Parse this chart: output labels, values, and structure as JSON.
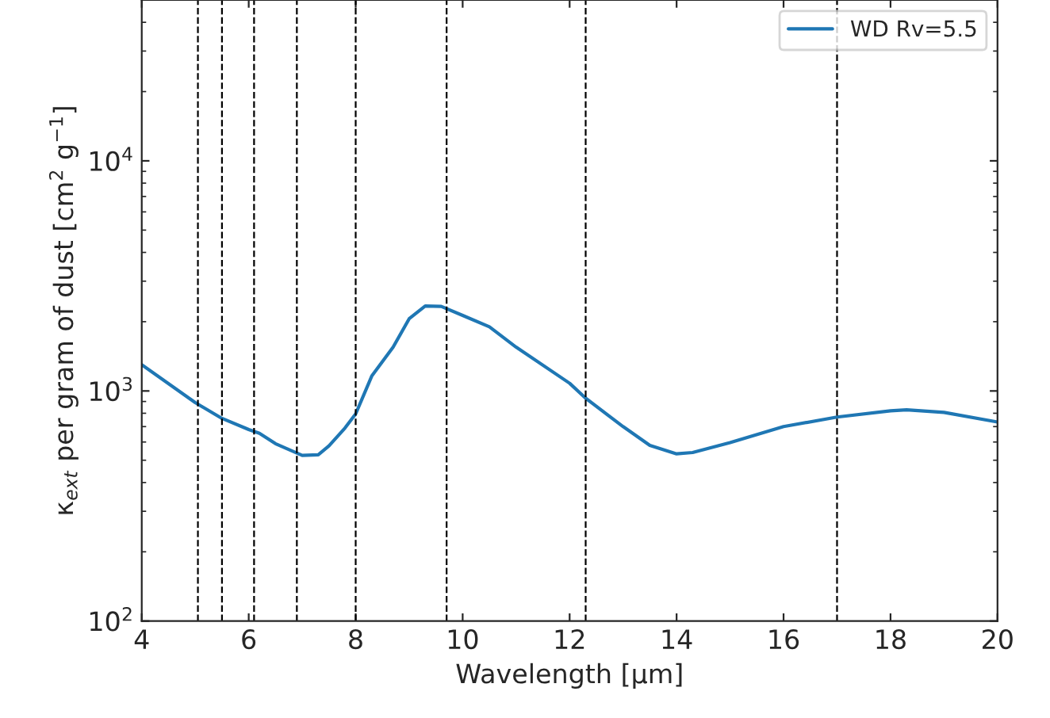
{
  "chart_data": {
    "type": "line",
    "xlabel": "Wavelength [μm]",
    "ylabel": "κ$_{ext}$ per gram of dust [cm$^{2}$ g$^{−1}$]",
    "x": [
      4,
      5,
      5.5,
      6,
      6.2,
      6.5,
      7,
      7.3,
      7.5,
      7.8,
      8,
      8.3,
      8.7,
      9,
      9.3,
      9.6,
      10,
      10.5,
      11,
      12,
      12.3,
      13,
      13.5,
      14,
      14.3,
      15,
      16,
      17,
      18,
      18.3,
      19,
      20
    ],
    "series": [
      {
        "name": "WD Rv=5.5",
        "color": "#1f77b4",
        "values": [
          1300,
          890,
          760,
          680,
          655,
          590,
          525,
          528,
          577,
          690,
          795,
          1160,
          1550,
          2060,
          2340,
          2330,
          2130,
          1900,
          1550,
          1080,
          930,
          700,
          580,
          533,
          540,
          596,
          700,
          770,
          820,
          828,
          807,
          733
        ]
      }
    ],
    "log": "y",
    "xlim": [
      4,
      20
    ],
    "ylim": [
      100,
      50000
    ],
    "xticks": [
      4,
      6,
      8,
      10,
      12,
      14,
      16,
      18,
      20
    ],
    "yticks": [
      {
        "value": 100,
        "label": "10$^{2}$"
      },
      {
        "value": 1000,
        "label": "10$^{3}$"
      },
      {
        "value": 10000,
        "label": "10$^{4}$"
      }
    ],
    "ref_lines": [
      {
        "axis": "x",
        "value": 5.05,
        "color": "#000000",
        "line_style": "dashed"
      },
      {
        "axis": "x",
        "value": 5.5,
        "color": "#000000",
        "line_style": "dashed"
      },
      {
        "axis": "x",
        "value": 6.1,
        "color": "#000000",
        "line_style": "dashed"
      },
      {
        "axis": "x",
        "value": 6.9,
        "color": "#000000",
        "line_style": "dashed"
      },
      {
        "axis": "x",
        "value": 8.0,
        "color": "#000000",
        "line_style": "dashed"
      },
      {
        "axis": "x",
        "value": 9.7,
        "color": "#000000",
        "line_style": "dashed"
      },
      {
        "axis": "x",
        "value": 12.3,
        "color": "#000000",
        "line_style": "dashed"
      },
      {
        "axis": "x",
        "value": 17.0,
        "color": "#000000",
        "line_style": "dashed"
      }
    ],
    "legend": "top right",
    "grid": false,
    "line_style": "solid",
    "marker": "none"
  }
}
